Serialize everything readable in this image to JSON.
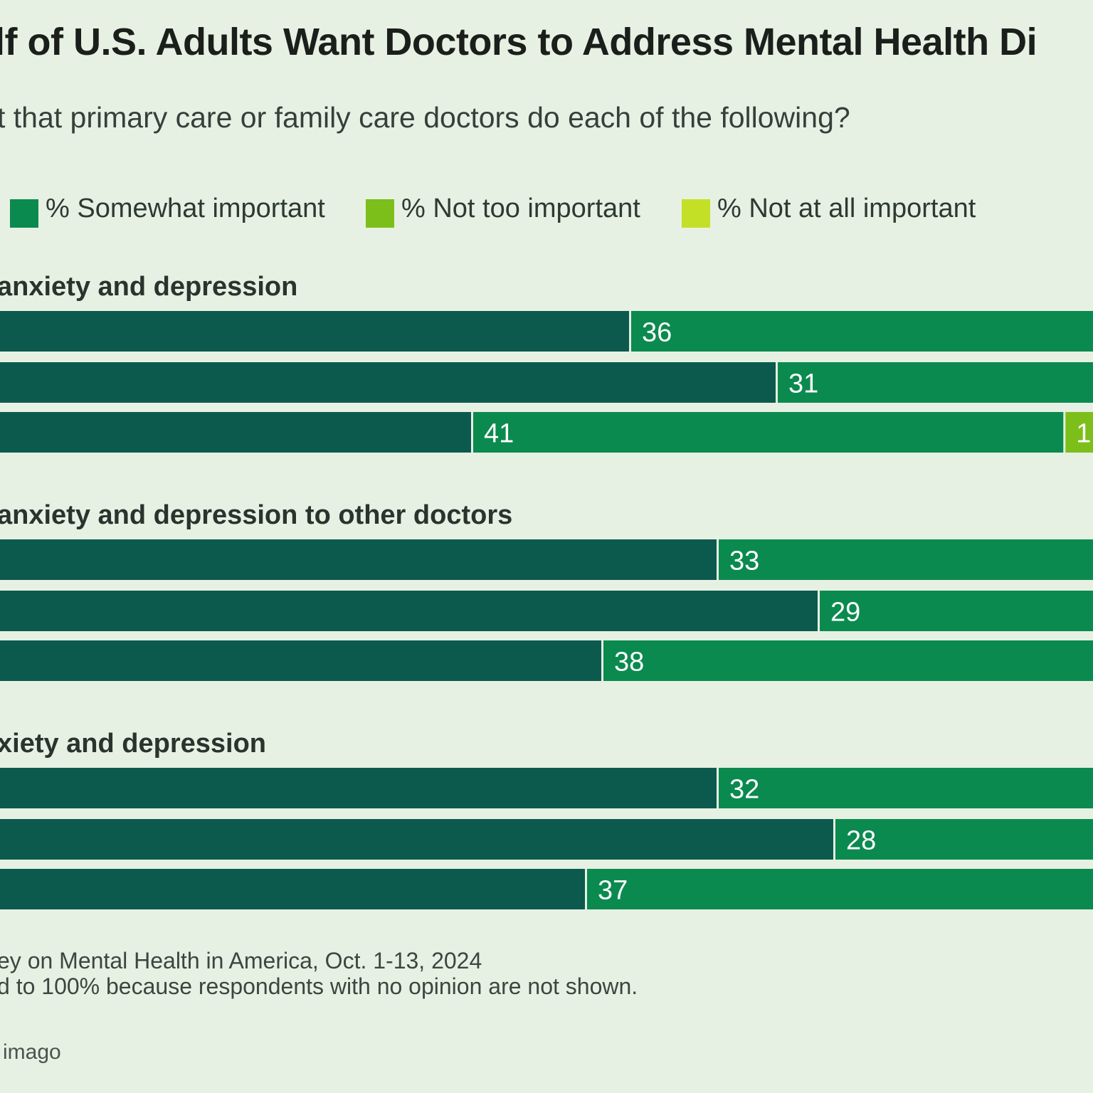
{
  "header": {
    "title": "lf of U.S. Adults Want Doctors to Address Mental Health Di",
    "subtitle": "t that primary care or family care doctors do each of the following?"
  },
  "colors": {
    "very_important": "#0c5a4e",
    "somewhat_important": "#0b8a4f",
    "not_too_important": "#7cbf1a",
    "not_at_all_important": "#c3e027",
    "background": "#e7f1e3"
  },
  "legend": [
    {
      "label": "% Somewhat important",
      "color": "#0b8a4f"
    },
    {
      "label": "% Not too important",
      "color": "#7cbf1a"
    },
    {
      "label": "% Not at all important",
      "color": "#c3e027"
    }
  ],
  "chart_data": {
    "type": "bar",
    "orientation": "horizontal-stacked",
    "groups": [
      {
        "title": "anxiety and depression",
        "bars": [
          {
            "segments": [
              {
                "series": "very",
                "label": ""
              },
              {
                "series": "somewhat",
                "value": 36,
                "label": "36"
              }
            ]
          },
          {
            "segments": [
              {
                "series": "very",
                "label": ""
              },
              {
                "series": "somewhat",
                "value": 31,
                "label": "31"
              }
            ]
          },
          {
            "segments": [
              {
                "series": "very",
                "label": ""
              },
              {
                "series": "somewhat",
                "value": 41,
                "label": "41"
              },
              {
                "series": "not_too",
                "label": "1"
              }
            ]
          }
        ]
      },
      {
        "title": "anxiety and depression to other doctors",
        "bars": [
          {
            "segments": [
              {
                "series": "very",
                "label": ""
              },
              {
                "series": "somewhat",
                "value": 33,
                "label": "33"
              }
            ]
          },
          {
            "segments": [
              {
                "series": "very",
                "label": ""
              },
              {
                "series": "somewhat",
                "value": 29,
                "label": "29"
              }
            ]
          },
          {
            "segments": [
              {
                "series": "very",
                "label": ""
              },
              {
                "series": "somewhat",
                "value": 38,
                "label": "38"
              }
            ]
          }
        ]
      },
      {
        "title": "xiety and depression",
        "bars": [
          {
            "segments": [
              {
                "series": "very",
                "label": ""
              },
              {
                "series": "somewhat",
                "value": 32,
                "label": "32"
              }
            ]
          },
          {
            "segments": [
              {
                "series": "very",
                "label": ""
              },
              {
                "series": "somewhat",
                "value": 28,
                "label": "28"
              }
            ]
          },
          {
            "segments": [
              {
                "series": "very",
                "label": ""
              },
              {
                "series": "somewhat",
                "value": 37,
                "label": "37"
              }
            ]
          }
        ]
      }
    ]
  },
  "footnotes": [
    "ey on Mental Health in America, Oct. 1-13, 2024",
    "d to 100% because respondents with no opinion are not shown."
  ],
  "credit": "imago"
}
